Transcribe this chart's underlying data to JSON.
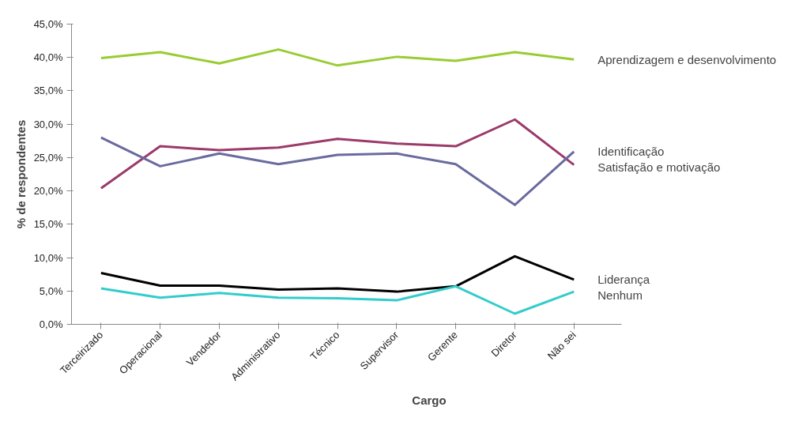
{
  "chart_data": {
    "type": "line",
    "xlabel": "Cargo",
    "ylabel": "% de respondentes",
    "categories": [
      "Terceirizado",
      "Operacional",
      "Vendedor",
      "Administrativo",
      "Técnico",
      "Supervisor",
      "Gerente",
      "Diretor",
      "Não sei"
    ],
    "series": [
      {
        "name": "Aprendizagem e desenvolvimento",
        "color": "#99cc33",
        "values": [
          39.9,
          40.8,
          39.1,
          41.2,
          38.8,
          40.1,
          39.5,
          40.8,
          39.7
        ]
      },
      {
        "name": "Satisfação e motivação",
        "color": "#9b3a6b",
        "values": [
          20.4,
          26.7,
          26.1,
          26.5,
          27.8,
          27.1,
          26.7,
          30.7,
          23.9
        ]
      },
      {
        "name": "Identificação",
        "color": "#6a6aa0",
        "values": [
          28.0,
          23.7,
          25.6,
          24.0,
          25.4,
          25.6,
          24.0,
          17.9,
          25.9
        ]
      },
      {
        "name": "Liderança",
        "color": "#000000",
        "values": [
          7.7,
          5.8,
          5.8,
          5.2,
          5.4,
          4.9,
          5.7,
          10.2,
          6.7
        ]
      },
      {
        "name": "Nenhum",
        "color": "#33cccc",
        "values": [
          5.4,
          4.0,
          4.7,
          4.0,
          3.9,
          3.6,
          5.7,
          1.6,
          4.9
        ]
      }
    ],
    "ylim": [
      0,
      45
    ],
    "yticks": [
      {
        "value": 0,
        "label": "0,0%"
      },
      {
        "value": 5,
        "label": "5,0%"
      },
      {
        "value": 10,
        "label": "10,0%"
      },
      {
        "value": 15,
        "label": "15,0%"
      },
      {
        "value": 20,
        "label": "20,0%"
      },
      {
        "value": 25,
        "label": "25,0%"
      },
      {
        "value": 30,
        "label": "30,0%"
      },
      {
        "value": 35,
        "label": "35,0%"
      },
      {
        "value": 40,
        "label": "40,0%"
      },
      {
        "value": 45,
        "label": "45,0%"
      }
    ],
    "grid": false,
    "marker": "none",
    "line_style": "solid"
  }
}
